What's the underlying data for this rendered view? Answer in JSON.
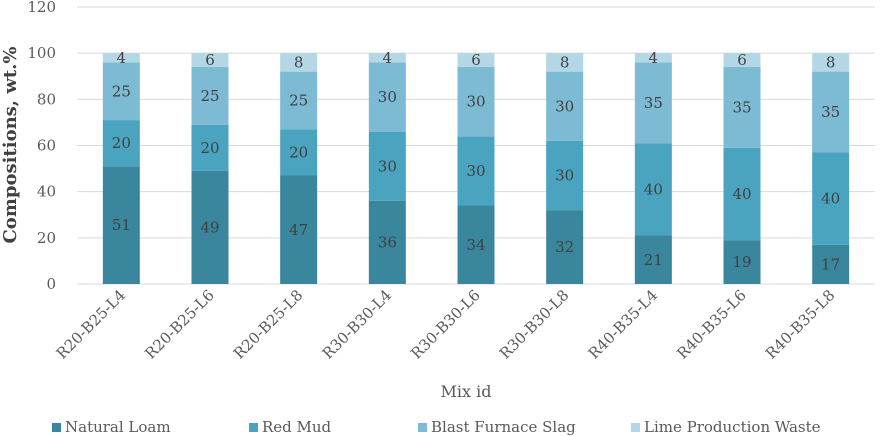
{
  "chart_data": {
    "type": "stacked-bar",
    "categories": [
      "R20-B25-L4",
      "R20-B25-L6",
      "R20-B25-L8",
      "R30-B30-L4",
      "R30-B30-L6",
      "R30-B30-L8",
      "R40-B35-L4",
      "R40-B35-L6",
      "R40-B35-L8"
    ],
    "series": [
      {
        "name": "Natural Loam",
        "color": "#3a869c",
        "values": [
          51,
          49,
          47,
          36,
          34,
          32,
          21,
          19,
          17
        ]
      },
      {
        "name": "Red Mud",
        "color": "#4aa3bf",
        "values": [
          20,
          20,
          20,
          30,
          30,
          30,
          40,
          40,
          40
        ]
      },
      {
        "name": "Blast Furnace Slag",
        "color": "#7dbad3",
        "values": [
          25,
          25,
          25,
          30,
          30,
          30,
          35,
          35,
          35
        ]
      },
      {
        "name": "Lime Production Waste",
        "color": "#b4d7e5",
        "values": [
          4,
          6,
          8,
          4,
          6,
          8,
          4,
          6,
          8
        ]
      }
    ],
    "xlabel": "Mix id",
    "ylabel": "Compositions, wt.%",
    "ylim": [
      0,
      120
    ],
    "yticks": [
      0,
      20,
      40,
      60,
      80,
      100,
      120
    ],
    "grid": true,
    "legend": "bottom"
  }
}
